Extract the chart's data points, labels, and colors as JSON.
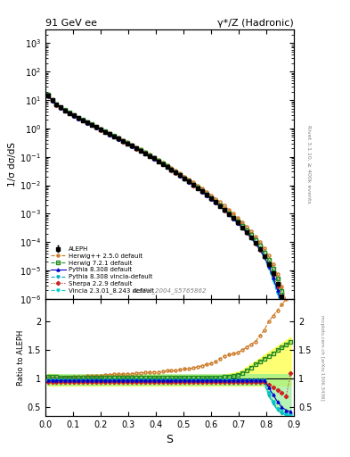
{
  "title_left": "91 GeV ee",
  "title_right": "γ*/Z (Hadronic)",
  "xlabel": "S",
  "ylabel_main": "1/σ dσ/dS",
  "ylabel_ratio": "Ratio to ALEPH",
  "watermark": "ALEPH_2004_S5765862",
  "rivet_label": "Rivet 3.1.10, ≥ 400k events",
  "mcplots_label": "mcplots.cern.ch [arXiv:1306.3436]",
  "xlim": [
    0.0,
    0.9
  ],
  "ylim_main": [
    1e-06,
    3000
  ],
  "ylim_ratio": [
    0.35,
    2.4
  ],
  "aleph_x": [
    0.008,
    0.024,
    0.04,
    0.056,
    0.072,
    0.088,
    0.104,
    0.12,
    0.136,
    0.152,
    0.168,
    0.184,
    0.2,
    0.216,
    0.232,
    0.248,
    0.264,
    0.28,
    0.296,
    0.312,
    0.328,
    0.344,
    0.36,
    0.376,
    0.392,
    0.408,
    0.424,
    0.44,
    0.456,
    0.472,
    0.488,
    0.504,
    0.52,
    0.536,
    0.552,
    0.568,
    0.584,
    0.6,
    0.616,
    0.632,
    0.648,
    0.664,
    0.68,
    0.696,
    0.712,
    0.728,
    0.744,
    0.76,
    0.776,
    0.792,
    0.808,
    0.824,
    0.84,
    0.856,
    0.872,
    0.888
  ],
  "aleph_y": [
    14.5,
    9.8,
    7.0,
    5.5,
    4.3,
    3.5,
    2.85,
    2.35,
    1.95,
    1.62,
    1.35,
    1.12,
    0.93,
    0.77,
    0.64,
    0.53,
    0.44,
    0.365,
    0.3,
    0.248,
    0.203,
    0.166,
    0.135,
    0.109,
    0.088,
    0.0708,
    0.0568,
    0.0454,
    0.036,
    0.0285,
    0.0224,
    0.01755,
    0.01365,
    0.01052,
    0.00806,
    0.00613,
    0.00463,
    0.00347,
    0.00258,
    0.001895,
    0.001375,
    0.000985,
    0.000695,
    0.000486,
    0.000334,
    0.000225,
    0.000148,
    9.4e-05,
    5.7e-05,
    3.2e-05,
    1.7e-05,
    8e-06,
    3.4e-06,
    1.2e-06,
    3.5e-07,
    8e-08
  ],
  "aleph_yerr": [
    0.3,
    0.15,
    0.12,
    0.09,
    0.07,
    0.06,
    0.05,
    0.04,
    0.03,
    0.025,
    0.022,
    0.018,
    0.015,
    0.012,
    0.01,
    0.008,
    0.007,
    0.006,
    0.005,
    0.004,
    0.003,
    0.0025,
    0.002,
    0.0016,
    0.0013,
    0.001,
    0.0008,
    0.00065,
    0.00055,
    0.00045,
    0.00035,
    0.00027,
    0.00021,
    0.00017,
    0.00013,
    0.0001,
    7.5e-05,
    5.5e-05,
    4.2e-05,
    3e-05,
    2.2e-05,
    1.6e-05,
    1.1e-05,
    8e-06,
    5.5e-06,
    3.7e-06,
    2.4e-06,
    1.5e-06,
    9e-07,
    5e-07,
    3e-07,
    1.5e-07,
    6e-08,
    2e-08,
    6e-09,
    2e-09
  ],
  "herwig2_ratio": [
    1.0,
    1.0,
    1.01,
    1.01,
    1.02,
    1.02,
    1.03,
    1.04,
    1.04,
    1.05,
    1.05,
    1.06,
    1.06,
    1.07,
    1.07,
    1.08,
    1.08,
    1.08,
    1.09,
    1.09,
    1.1,
    1.1,
    1.11,
    1.11,
    1.12,
    1.12,
    1.13,
    1.14,
    1.14,
    1.15,
    1.16,
    1.17,
    1.18,
    1.19,
    1.21,
    1.23,
    1.25,
    1.27,
    1.3,
    1.35,
    1.4,
    1.42,
    1.44,
    1.46,
    1.5,
    1.55,
    1.6,
    1.65,
    1.75,
    1.85,
    2.0,
    2.1,
    2.2,
    2.3,
    2.4,
    2.5
  ],
  "herwig7_ratio": [
    1.04,
    1.03,
    1.03,
    1.02,
    1.02,
    1.02,
    1.02,
    1.02,
    1.02,
    1.02,
    1.02,
    1.02,
    1.02,
    1.02,
    1.02,
    1.02,
    1.02,
    1.02,
    1.02,
    1.02,
    1.02,
    1.02,
    1.02,
    1.02,
    1.02,
    1.02,
    1.02,
    1.02,
    1.02,
    1.02,
    1.02,
    1.02,
    1.02,
    1.02,
    1.02,
    1.02,
    1.02,
    1.02,
    1.02,
    1.02,
    1.03,
    1.04,
    1.05,
    1.07,
    1.1,
    1.15,
    1.2,
    1.25,
    1.3,
    1.35,
    1.4,
    1.45,
    1.5,
    1.55,
    1.6,
    1.65
  ],
  "pythia_ratio": [
    0.97,
    0.97,
    0.97,
    0.97,
    0.97,
    0.97,
    0.97,
    0.97,
    0.97,
    0.97,
    0.97,
    0.97,
    0.97,
    0.97,
    0.97,
    0.97,
    0.97,
    0.97,
    0.97,
    0.97,
    0.97,
    0.97,
    0.97,
    0.97,
    0.97,
    0.97,
    0.97,
    0.97,
    0.97,
    0.97,
    0.97,
    0.97,
    0.97,
    0.97,
    0.97,
    0.97,
    0.97,
    0.97,
    0.97,
    0.97,
    0.97,
    0.97,
    0.97,
    0.97,
    0.97,
    0.97,
    0.97,
    0.97,
    0.97,
    0.97,
    0.85,
    0.72,
    0.6,
    0.5,
    0.45,
    0.42
  ],
  "vincia_ratio": [
    0.97,
    0.97,
    0.97,
    0.97,
    0.97,
    0.97,
    0.97,
    0.97,
    0.97,
    0.97,
    0.97,
    0.97,
    0.97,
    0.97,
    0.97,
    0.97,
    0.97,
    0.97,
    0.97,
    0.97,
    0.97,
    0.97,
    0.97,
    0.97,
    0.97,
    0.97,
    0.97,
    0.97,
    0.97,
    0.97,
    0.97,
    0.97,
    0.97,
    0.97,
    0.97,
    0.97,
    0.97,
    0.97,
    0.97,
    0.97,
    0.97,
    0.97,
    0.97,
    0.97,
    0.97,
    0.97,
    0.97,
    0.97,
    0.97,
    0.97,
    0.75,
    0.6,
    0.48,
    0.42,
    0.38,
    0.36
  ],
  "sherpa_ratio": [
    0.95,
    0.95,
    0.95,
    0.95,
    0.95,
    0.95,
    0.95,
    0.95,
    0.95,
    0.95,
    0.95,
    0.95,
    0.95,
    0.95,
    0.95,
    0.95,
    0.95,
    0.95,
    0.95,
    0.95,
    0.95,
    0.95,
    0.95,
    0.95,
    0.95,
    0.95,
    0.95,
    0.95,
    0.95,
    0.95,
    0.95,
    0.95,
    0.95,
    0.95,
    0.95,
    0.95,
    0.95,
    0.95,
    0.95,
    0.95,
    0.95,
    0.95,
    0.95,
    0.95,
    0.95,
    0.95,
    0.95,
    0.95,
    0.95,
    0.95,
    0.9,
    0.85,
    0.8,
    0.75,
    0.7,
    1.1
  ],
  "colors": {
    "aleph": "#000000",
    "herwig2": "#cc7722",
    "herwig7": "#228B22",
    "pythia": "#0000cc",
    "pythia_vincia": "#00aacc",
    "sherpa": "#cc2222",
    "vincia": "#00cccc"
  }
}
